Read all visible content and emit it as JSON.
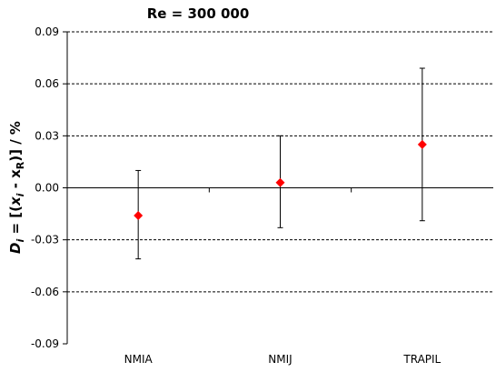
{
  "chart_data": {
    "type": "scatter",
    "title": "Re = 300 000",
    "ylabel": {
      "prefix": "D",
      "prefix_sub": "i",
      "eq": " = [(",
      "x1": "x",
      "x1_sub": "i",
      "minus": " - ",
      "x2": "x",
      "x2_sub": "R",
      "suffix": ")] / %"
    },
    "categories": [
      "NMIA",
      "NMIJ",
      "TRAPIL"
    ],
    "ylim": [
      -0.09,
      0.09
    ],
    "yticks": [
      -0.09,
      -0.06,
      -0.03,
      0.0,
      0.03,
      0.06,
      0.09
    ],
    "ytick_labels": [
      "-0.09",
      "-0.06",
      "-0.03",
      "0.00",
      "0.03",
      "0.06",
      "0.09"
    ],
    "grid": "horizontal dashed",
    "points": [
      {
        "category": "NMIA",
        "value": -0.016,
        "err_low": -0.041,
        "err_high": 0.01
      },
      {
        "category": "NMIJ",
        "value": 0.003,
        "err_low": -0.023,
        "err_high": 0.03
      },
      {
        "category": "TRAPIL",
        "value": 0.025,
        "err_low": -0.019,
        "err_high": 0.069
      }
    ],
    "marker_color": "#ff0000",
    "errorbar_color": "#000000"
  }
}
